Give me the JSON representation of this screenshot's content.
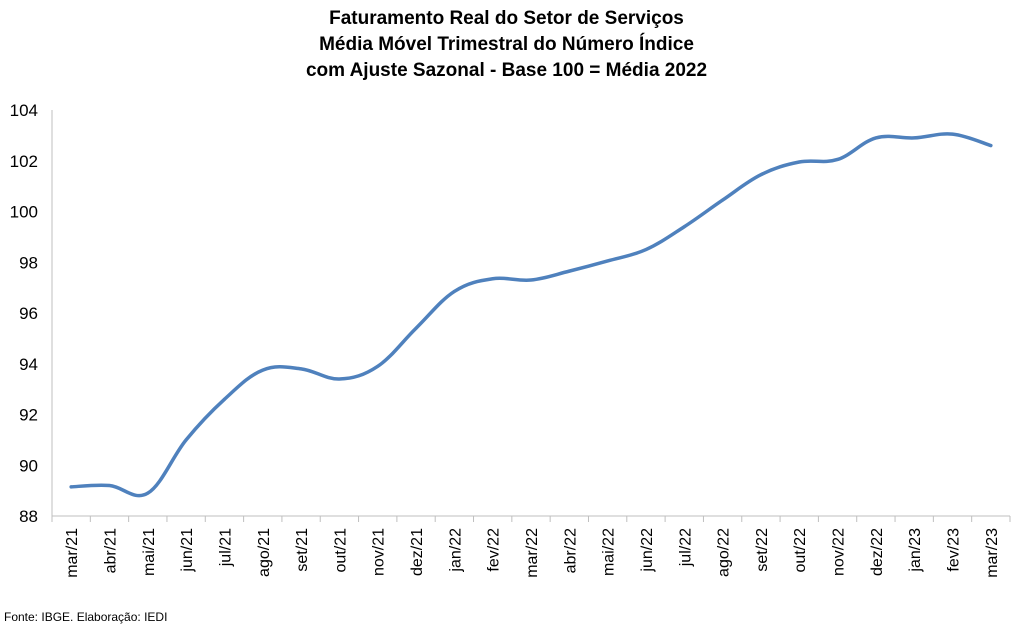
{
  "chart_data": {
    "type": "line",
    "title_lines": [
      "Faturamento Real do Setor de Serviços",
      "Média Móvel Trimestral do Número Índice",
      "com Ajuste Sazonal - Base 100 = Média 2022"
    ],
    "categories": [
      "mar/21",
      "abr/21",
      "mai/21",
      "jun/21",
      "jul/21",
      "ago/21",
      "set/21",
      "out/21",
      "nov/21",
      "dez/21",
      "jan/22",
      "fev/22",
      "mar/22",
      "abr/22",
      "mai/22",
      "jun/22",
      "jul/22",
      "ago/22",
      "set/22",
      "out/22",
      "nov/22",
      "dez/22",
      "jan/23",
      "fev/23",
      "mar/23"
    ],
    "series": [
      {
        "color": "#4f81bd",
        "values": [
          89.15,
          89.2,
          88.9,
          91.0,
          92.6,
          93.75,
          93.8,
          93.4,
          93.9,
          95.4,
          96.85,
          97.35,
          97.3,
          97.65,
          98.05,
          98.5,
          99.4,
          100.45,
          101.45,
          101.95,
          102.05,
          102.9,
          102.9,
          103.05,
          102.6
        ]
      }
    ],
    "ylim": [
      88,
      104
    ],
    "yticks": [
      88,
      90,
      92,
      94,
      96,
      98,
      100,
      102,
      104
    ],
    "grid": false,
    "legend": "none"
  },
  "source_note": "Fonte: IBGE. Elaboração: IEDI"
}
